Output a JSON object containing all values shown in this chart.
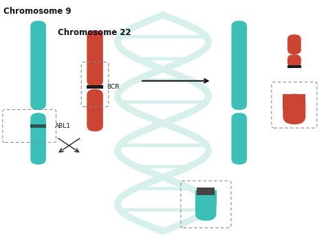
{
  "bg_color": "#ffffff",
  "teal": "#3bbfb8",
  "red": "#cc4433",
  "dna_color": "#d8f0ec",
  "dark": "#1a1a1a",
  "chr9_label": "Chromosome 9",
  "chr22_label": "Chromosome 22",
  "bcr_label": "BCR",
  "abl1_label": "ABL1",
  "xlim": [
    0,
    10
  ],
  "ylim": [
    0,
    10
  ]
}
